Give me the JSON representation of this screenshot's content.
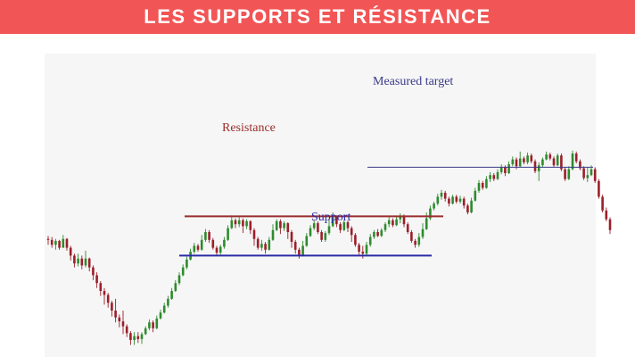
{
  "header": {
    "title": "LES SUPPORTS ET RÉSISTANCE"
  },
  "colors": {
    "banner": "#f25555",
    "bull": "#2e8b2e",
    "bear": "#9b1f2a",
    "resistance": "#9b2d2d",
    "support": "#2a2aa8",
    "target": "#3a3a8a",
    "panel": "#f6f6f6"
  },
  "chart_data": {
    "type": "candlestick",
    "annotations": [
      {
        "id": "resistance",
        "label": "Resistance",
        "price": 112.0
      },
      {
        "id": "support",
        "label": "Support",
        "price": 92.0
      },
      {
        "id": "target",
        "label": "Measured target",
        "price": 137.0
      }
    ],
    "candles": [
      [
        100.5,
        100.0,
        102.0,
        97.5
      ],
      [
        100.0,
        97.5,
        101.5,
        96.0
      ],
      [
        97.5,
        99.5,
        100.5,
        95.0
      ],
      [
        99.5,
        96.0,
        100.0,
        95.0
      ],
      [
        96.0,
        100.5,
        102.5,
        96.0
      ],
      [
        100.5,
        96.0,
        101.0,
        94.5
      ],
      [
        96.0,
        92.0,
        97.0,
        89.5
      ],
      [
        92.0,
        88.0,
        93.0,
        86.0
      ],
      [
        88.0,
        90.5,
        93.0,
        86.5
      ],
      [
        90.5,
        87.0,
        92.0,
        85.0
      ],
      [
        87.0,
        90.5,
        94.5,
        86.0
      ],
      [
        90.5,
        86.0,
        91.0,
        84.0
      ],
      [
        86.0,
        82.0,
        87.0,
        79.5
      ],
      [
        82.0,
        78.0,
        83.5,
        75.5
      ],
      [
        78.0,
        74.0,
        79.0,
        71.5
      ],
      [
        74.0,
        72.0,
        75.5,
        67.0
      ],
      [
        72.0,
        68.0,
        73.0,
        65.5
      ],
      [
        68.0,
        64.0,
        69.0,
        61.0
      ],
      [
        64.0,
        60.5,
        70.0,
        58.0
      ],
      [
        60.5,
        58.5,
        62.0,
        55.5
      ],
      [
        58.5,
        56.0,
        64.0,
        52.0
      ],
      [
        56.0,
        52.5,
        57.0,
        50.5
      ],
      [
        52.5,
        49.0,
        53.5,
        46.5
      ],
      [
        49.0,
        51.0,
        53.0,
        46.5
      ],
      [
        51.0,
        49.5,
        53.0,
        47.5
      ],
      [
        49.5,
        52.0,
        53.0,
        47.0
      ],
      [
        52.0,
        55.0,
        56.0,
        51.5
      ],
      [
        55.0,
        58.0,
        59.5,
        54.0
      ],
      [
        58.0,
        55.0,
        59.0,
        53.0
      ],
      [
        55.0,
        60.0,
        61.5,
        54.5
      ],
      [
        60.0,
        63.0,
        64.5,
        59.5
      ],
      [
        63.0,
        66.5,
        68.0,
        62.5
      ],
      [
        66.5,
        70.0,
        71.5,
        65.5
      ],
      [
        70.0,
        74.0,
        75.5,
        69.5
      ],
      [
        74.0,
        78.0,
        79.5,
        73.5
      ],
      [
        78.0,
        82.0,
        83.5,
        77.0
      ],
      [
        82.0,
        86.0,
        87.5,
        81.5
      ],
      [
        86.0,
        90.0,
        91.5,
        85.0
      ],
      [
        90.0,
        94.0,
        95.5,
        89.5
      ],
      [
        94.0,
        97.0,
        98.5,
        93.0
      ],
      [
        97.0,
        95.0,
        98.0,
        94.0
      ],
      [
        95.0,
        100.0,
        102.5,
        94.5
      ],
      [
        100.0,
        104.0,
        105.5,
        99.0
      ],
      [
        104.0,
        100.0,
        105.0,
        98.5
      ],
      [
        100.0,
        96.0,
        101.0,
        95.0
      ],
      [
        96.0,
        93.5,
        97.0,
        92.0
      ],
      [
        93.5,
        96.5,
        97.5,
        92.5
      ],
      [
        96.5,
        100.0,
        101.5,
        95.5
      ],
      [
        100.0,
        106.0,
        107.5,
        99.5
      ],
      [
        106.0,
        110.0,
        112.5,
        105.5
      ],
      [
        110.0,
        108.0,
        111.0,
        106.0
      ],
      [
        108.0,
        110.0,
        111.5,
        106.5
      ],
      [
        110.0,
        107.0,
        111.0,
        103.5
      ],
      [
        107.0,
        109.5,
        110.5,
        105.5
      ],
      [
        109.5,
        105.0,
        110.0,
        103.0
      ],
      [
        105.0,
        100.5,
        106.0,
        97.0
      ],
      [
        100.5,
        96.0,
        101.5,
        95.0
      ],
      [
        96.0,
        98.0,
        100.0,
        94.5
      ],
      [
        98.0,
        95.0,
        99.0,
        93.0
      ],
      [
        95.0,
        100.0,
        101.5,
        94.5
      ],
      [
        100.0,
        105.0,
        108.0,
        99.5
      ],
      [
        105.0,
        109.5,
        110.5,
        104.5
      ],
      [
        109.5,
        106.0,
        110.5,
        103.0
      ],
      [
        106.0,
        108.5,
        109.5,
        104.5
      ],
      [
        108.5,
        104.0,
        109.0,
        100.5
      ],
      [
        104.0,
        99.0,
        105.0,
        96.0
      ],
      [
        99.0,
        95.0,
        100.0,
        93.0
      ],
      [
        95.0,
        92.0,
        96.0,
        90.5
      ],
      [
        92.0,
        97.0,
        99.5,
        91.5
      ],
      [
        97.0,
        102.0,
        103.5,
        96.5
      ],
      [
        102.0,
        106.0,
        107.5,
        101.5
      ],
      [
        106.0,
        108.5,
        110.0,
        105.0
      ],
      [
        108.5,
        104.0,
        109.5,
        103.0
      ],
      [
        104.0,
        100.0,
        105.0,
        99.0
      ],
      [
        100.0,
        103.5,
        104.5,
        99.0
      ],
      [
        103.5,
        107.0,
        111.0,
        102.5
      ],
      [
        107.0,
        111.5,
        114.0,
        106.5
      ],
      [
        111.5,
        108.0,
        112.5,
        106.5
      ],
      [
        108.0,
        105.0,
        109.0,
        103.5
      ],
      [
        105.0,
        109.0,
        110.0,
        104.5
      ],
      [
        109.0,
        106.0,
        110.0,
        104.0
      ],
      [
        106.0,
        102.5,
        107.0,
        99.0
      ],
      [
        102.5,
        97.5,
        103.5,
        96.5
      ],
      [
        97.5,
        94.0,
        98.5,
        92.5
      ],
      [
        94.0,
        93.0,
        97.0,
        90.5
      ],
      [
        93.0,
        97.5,
        99.0,
        92.0
      ],
      [
        97.5,
        101.5,
        103.0,
        96.5
      ],
      [
        101.5,
        104.0,
        105.0,
        100.5
      ],
      [
        104.0,
        102.0,
        105.5,
        101.5
      ],
      [
        102.0,
        105.0,
        106.0,
        101.5
      ],
      [
        105.0,
        108.0,
        109.0,
        104.0
      ],
      [
        108.0,
        110.0,
        111.5,
        106.5
      ],
      [
        110.0,
        107.5,
        111.0,
        106.5
      ],
      [
        107.5,
        110.5,
        112.0,
        107.0
      ],
      [
        110.5,
        112.0,
        113.5,
        108.5
      ],
      [
        112.0,
        108.0,
        113.0,
        106.5
      ],
      [
        108.0,
        104.0,
        109.0,
        103.0
      ],
      [
        104.0,
        99.5,
        105.0,
        98.5
      ],
      [
        99.5,
        97.5,
        100.5,
        96.0
      ],
      [
        97.5,
        101.5,
        103.5,
        96.5
      ],
      [
        101.5,
        105.5,
        108.5,
        100.5
      ],
      [
        105.5,
        111.0,
        114.0,
        105.0
      ],
      [
        111.0,
        116.0,
        117.5,
        110.0
      ],
      [
        116.0,
        118.5,
        119.5,
        115.0
      ],
      [
        118.5,
        122.0,
        123.5,
        117.5
      ],
      [
        122.0,
        124.0,
        125.5,
        120.5
      ],
      [
        124.0,
        121.0,
        125.0,
        119.5
      ],
      [
        121.0,
        118.5,
        122.0,
        117.0
      ],
      [
        118.5,
        122.0,
        123.0,
        118.0
      ],
      [
        122.0,
        119.5,
        123.0,
        118.5
      ],
      [
        119.5,
        121.0,
        122.5,
        118.5
      ],
      [
        121.0,
        117.5,
        122.0,
        116.0
      ],
      [
        117.5,
        114.0,
        118.5,
        113.0
      ],
      [
        114.0,
        120.0,
        121.5,
        113.5
      ],
      [
        120.0,
        125.0,
        126.5,
        119.5
      ],
      [
        125.0,
        129.0,
        130.5,
        124.0
      ],
      [
        129.0,
        126.5,
        130.0,
        125.5
      ],
      [
        126.5,
        131.0,
        132.5,
        126.0
      ],
      [
        131.0,
        133.0,
        134.5,
        129.5
      ],
      [
        133.0,
        131.0,
        134.0,
        130.0
      ],
      [
        131.0,
        134.5,
        136.0,
        130.5
      ],
      [
        134.5,
        137.0,
        138.5,
        133.5
      ],
      [
        137.0,
        134.0,
        138.0,
        132.5
      ],
      [
        134.0,
        138.5,
        140.0,
        133.5
      ],
      [
        138.5,
        141.0,
        142.5,
        137.5
      ],
      [
        141.0,
        137.5,
        142.0,
        136.0
      ],
      [
        137.5,
        141.5,
        145.0,
        137.0
      ],
      [
        141.5,
        139.5,
        142.5,
        138.5
      ],
      [
        139.5,
        143.0,
        144.5,
        138.5
      ],
      [
        143.0,
        140.0,
        144.0,
        139.0
      ],
      [
        140.0,
        135.0,
        141.0,
        134.0
      ],
      [
        135.0,
        138.0,
        139.5,
        130.0
      ],
      [
        138.0,
        141.0,
        142.0,
        137.0
      ],
      [
        141.0,
        143.5,
        145.0,
        140.5
      ],
      [
        143.5,
        141.5,
        144.5,
        140.5
      ],
      [
        141.5,
        138.0,
        142.5,
        137.0
      ],
      [
        138.0,
        143.0,
        144.0,
        137.5
      ],
      [
        143.0,
        136.0,
        144.0,
        135.0
      ],
      [
        136.0,
        131.0,
        137.0,
        130.0
      ],
      [
        131.0,
        136.0,
        137.5,
        130.5
      ],
      [
        136.0,
        144.0,
        145.5,
        135.5
      ],
      [
        144.0,
        140.0,
        145.0,
        139.0
      ],
      [
        140.0,
        136.5,
        141.0,
        135.5
      ],
      [
        136.5,
        131.5,
        137.5,
        130.5
      ],
      [
        131.5,
        133.0,
        137.0,
        129.5
      ],
      [
        133.0,
        136.0,
        138.0,
        132.5
      ],
      [
        136.0,
        130.0,
        137.0,
        129.0
      ],
      [
        130.0,
        122.0,
        131.0,
        121.0
      ],
      [
        122.0,
        115.0,
        123.0,
        114.0
      ],
      [
        115.0,
        110.5,
        116.5,
        109.5
      ],
      [
        110.5,
        105.0,
        111.5,
        103.0
      ]
    ]
  }
}
